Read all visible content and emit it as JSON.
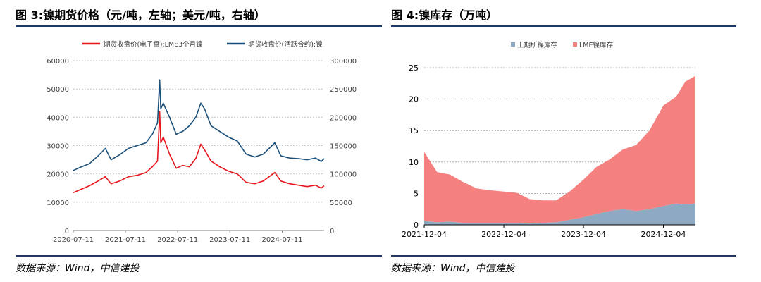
{
  "charts": {
    "left": {
      "title": "图 3:镍期货价格（元/吨，左轴；美元/吨，右轴）",
      "source": "数据来源：Wind，中信建投"
    },
    "right": {
      "title": "图 4:镍库存（万吨）",
      "source": "数据来源：Wind，中信建投"
    }
  },
  "colors": {
    "red": "#e8141b",
    "blue": "#1a4f7a",
    "shfe_fill": "#8eaac2",
    "lme_fill": "#f58080",
    "rule": "#1f3864"
  },
  "chart_data": [
    {
      "type": "line",
      "legend_position": "top",
      "grid": "horizontal",
      "x_tick_labels": [
        "2020-07-11",
        "2021-07-11",
        "2022-07-11",
        "2023-07-11",
        "2024-07-11"
      ],
      "x_range": [
        "2020-07-11",
        "2025-04-30"
      ],
      "ylim_left": [
        0,
        60000
      ],
      "yticks_left": [
        "0",
        "10000",
        "20000",
        "30000",
        "40000",
        "50000",
        "60000"
      ],
      "ylim_right": [
        0,
        300000
      ],
      "yticks_right": [
        "0",
        "50000",
        "100000",
        "150000",
        "200000",
        "250000",
        "300000"
      ],
      "series": [
        {
          "name": "期货收盘价(电子盘):LME3个月镍",
          "axis": "left",
          "color": "#e8141b",
          "x": [
            "2020-07-11",
            "2020-09-01",
            "2020-11-01",
            "2021-01-01",
            "2021-02-20",
            "2021-04-01",
            "2021-06-01",
            "2021-08-01",
            "2021-10-01",
            "2021-12-01",
            "2022-01-15",
            "2022-02-20",
            "2022-03-07",
            "2022-03-15",
            "2022-04-01",
            "2022-05-15",
            "2022-07-01",
            "2022-08-15",
            "2022-10-01",
            "2022-11-15",
            "2022-12-20",
            "2023-01-15",
            "2023-03-01",
            "2023-05-01",
            "2023-07-01",
            "2023-09-01",
            "2023-11-01",
            "2024-01-01",
            "2024-03-01",
            "2024-05-20",
            "2024-07-01",
            "2024-09-01",
            "2024-11-01",
            "2025-01-01",
            "2025-03-01",
            "2025-04-10",
            "2025-04-30"
          ],
          "y": [
            13400,
            14500,
            15800,
            17500,
            19000,
            16500,
            17500,
            19000,
            19500,
            20500,
            22500,
            24500,
            42000,
            31000,
            33000,
            27000,
            22000,
            23000,
            22500,
            25500,
            30500,
            28500,
            24500,
            22500,
            21000,
            20000,
            17000,
            16500,
            17500,
            20500,
            17500,
            16500,
            16000,
            15500,
            16000,
            15000,
            15800
          ]
        },
        {
          "name": "期货收盘价(活跃合约):镍",
          "axis": "right",
          "color": "#1a4f7a",
          "x": [
            "2020-07-11",
            "2020-09-01",
            "2020-11-01",
            "2021-01-01",
            "2021-02-20",
            "2021-04-01",
            "2021-06-01",
            "2021-08-01",
            "2021-10-01",
            "2021-12-01",
            "2022-01-15",
            "2022-02-20",
            "2022-03-07",
            "2022-03-15",
            "2022-04-01",
            "2022-05-15",
            "2022-07-01",
            "2022-08-15",
            "2022-10-01",
            "2022-11-15",
            "2022-12-20",
            "2023-01-15",
            "2023-03-01",
            "2023-05-01",
            "2023-07-01",
            "2023-09-01",
            "2023-11-01",
            "2024-01-01",
            "2024-03-01",
            "2024-05-20",
            "2024-07-01",
            "2024-09-01",
            "2024-11-01",
            "2025-01-01",
            "2025-03-01",
            "2025-04-10",
            "2025-04-30"
          ],
          "y": [
            106000,
            112000,
            118000,
            132000,
            145000,
            125000,
            134000,
            145000,
            150000,
            155000,
            170000,
            190000,
            266000,
            215000,
            225000,
            200000,
            170000,
            175000,
            185000,
            200000,
            225000,
            215000,
            185000,
            175000,
            165000,
            158000,
            135000,
            130000,
            135000,
            155000,
            132000,
            128000,
            127000,
            125000,
            128000,
            122000,
            127000
          ]
        }
      ]
    },
    {
      "type": "area",
      "stacked": true,
      "legend_position": "top",
      "grid": "horizontal",
      "x_tick_labels": [
        "2021-12-04",
        "2022-12-04",
        "2023-12-04",
        "2024-12-04"
      ],
      "x_range": [
        "2021-12-04",
        "2025-04-30"
      ],
      "ylim": [
        0,
        25
      ],
      "yticks": [
        "0",
        "5",
        "10",
        "15",
        "20",
        "25"
      ],
      "series": [
        {
          "name": "上期所镍库存",
          "color": "#8eaac2",
          "x": [
            "2021-12-04",
            "2022-02-01",
            "2022-04-01",
            "2022-06-01",
            "2022-08-01",
            "2022-10-01",
            "2022-12-04",
            "2023-02-01",
            "2023-04-01",
            "2023-06-01",
            "2023-08-01",
            "2023-10-01",
            "2023-12-04",
            "2024-02-01",
            "2024-04-01",
            "2024-06-01",
            "2024-08-01",
            "2024-10-01",
            "2024-12-04",
            "2025-02-01",
            "2025-03-15",
            "2025-04-30"
          ],
          "y": [
            0.6,
            0.4,
            0.5,
            0.3,
            0.3,
            0.3,
            0.3,
            0.3,
            0.2,
            0.3,
            0.4,
            0.8,
            1.2,
            1.7,
            2.2,
            2.5,
            2.2,
            2.5,
            3.0,
            3.4,
            3.3,
            3.4
          ]
        },
        {
          "name": "LME镍库存",
          "color": "#f58080",
          "x": [
            "2021-12-04",
            "2022-02-01",
            "2022-04-01",
            "2022-06-01",
            "2022-08-01",
            "2022-10-01",
            "2022-12-04",
            "2023-02-01",
            "2023-04-01",
            "2023-06-01",
            "2023-08-01",
            "2023-10-01",
            "2023-12-04",
            "2024-02-01",
            "2024-04-01",
            "2024-06-01",
            "2024-08-01",
            "2024-10-01",
            "2024-12-04",
            "2025-02-01",
            "2025-03-15",
            "2025-04-30"
          ],
          "y": [
            11.0,
            8.0,
            7.5,
            6.5,
            5.5,
            5.2,
            5.0,
            4.8,
            3.9,
            3.6,
            3.5,
            4.5,
            6.0,
            7.5,
            8.2,
            9.5,
            10.5,
            12.5,
            16.0,
            17.0,
            19.5,
            20.3
          ]
        }
      ]
    }
  ]
}
